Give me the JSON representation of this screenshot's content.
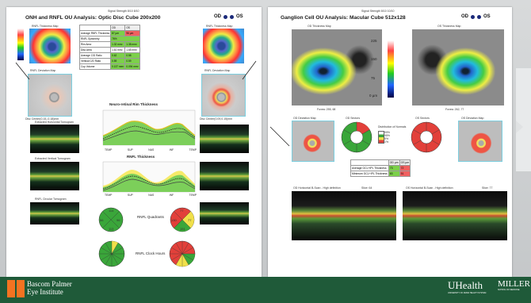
{
  "left": {
    "signal_strength": "Signal Strength  8/10        8/10",
    "title": "ONH and RNFL OU Analysis: Optic Disc Cube 200x200",
    "od": "OD",
    "os": "OS",
    "od_thickness_map": "RNFL Thickness Map",
    "os_thickness_map": "RNFL Thickness Map",
    "od_deviation_map": "RNFL Deviation Map",
    "os_deviation_map": "RNFL Deviation Map",
    "od_disc_center": "Disc Center(0.15,-0.18)mm",
    "os_disc_center": "Disc Center(0.09,0.15)mm",
    "h_tomogram": "Extracted Horizontal Tomogram",
    "v_tomogram": "Extracted Vertical Tomogram",
    "c_tomogram": "RNFL Circular Tomogram",
    "neuro_title": "Neuro-retinal Rim Thickness",
    "rnfl_title": "RNFL Thickness",
    "axis": [
      "TEMP",
      "SUP",
      "NAS",
      "INF",
      "TEMP"
    ],
    "quadrants_label": "RNFL Quadrants",
    "clock_label": "RNFL Clock Hours",
    "table": {
      "header": [
        "",
        "OD",
        "OS"
      ],
      "rows": [
        [
          "Average RNFL Thickness",
          "87 µm",
          "96 µm"
        ],
        [
          "RNFL Symmetry",
          "76%",
          ""
        ],
        [
          "Rim Area",
          "1.32 mm²",
          "1.38 mm²"
        ],
        [
          "Disc Area",
          "1.61 mm²",
          "1.65 mm²"
        ],
        [
          "Average C/D Ratio",
          "0.62",
          "0.58"
        ],
        [
          "Vertical C/D Ratio",
          "0.59",
          "0.59"
        ],
        [
          "Cup Volume",
          "0.137 mm³",
          "0.094 mm³"
        ]
      ]
    },
    "od_quadrants": [
      "114",
      "56",
      "96",
      "113"
    ],
    "os_quadrants": [
      "77",
      "130",
      "77",
      "151"
    ]
  },
  "right": {
    "signal_strength": "Signal Strength  8/10        10/10",
    "title": "Ganglion Cell OU Analysis: Macular Cube 512x128",
    "od": "OD",
    "os": "OS",
    "od_thickness_map": "OD Thickness Map",
    "os_thickness_map": "OS Thickness Map",
    "scale": [
      "225",
      "150",
      "75",
      "0 µm"
    ],
    "od_fovea": "Fovea: 255, 68",
    "os_fovea": "Fovea: 262, 77",
    "od_deviation": "OD Deviation Map",
    "od_sectors": "OD Sectors",
    "os_sectors": "OS Sectors",
    "os_deviation": "OS Deviation Map",
    "legend_title": "Distribution of Normals",
    "legend": [
      "99%",
      "95%",
      "5%",
      "1%"
    ],
    "gcl_table": {
      "header": [
        "",
        "OD µm",
        "OS µm"
      ],
      "rows": [
        [
          "Average GCL+IPL Thickness",
          "73",
          "72"
        ],
        [
          "Minimum GCL+IPL Thickness",
          "63",
          "51"
        ]
      ]
    },
    "od_bscan": "OD Horizontal B-Scan - High definition",
    "os_bscan": "OS Horizontal B-Scan - High definition",
    "od_slice": "Slice: 64",
    "os_slice": "Slice: 77"
  },
  "footer": {
    "logo_left_line1": "Bascom Palmer",
    "logo_left_line2": "Eye Institute",
    "logo_uhealth": "UHealth",
    "logo_uhealth_sub": "UNIVERSITY OF MIAMI HEALTH SYSTEM",
    "logo_miller": "MILLER",
    "logo_miller_sub": "SCHOOL OF MEDICINE"
  },
  "colors": {
    "footer_green": "#1f5a39",
    "rnfl_normal": "#3aa63a",
    "rnfl_borderline": "#f0e04a",
    "rnfl_abnormal": "#e2403a"
  }
}
